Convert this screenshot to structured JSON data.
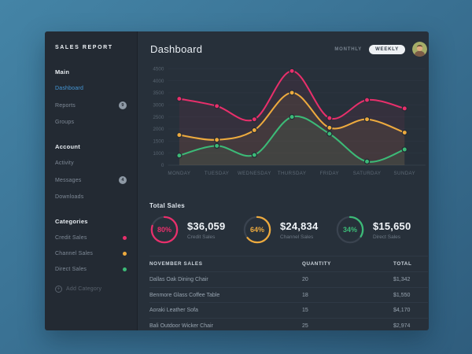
{
  "app": {
    "brand": "SALES REPORT"
  },
  "sidebar": {
    "sections": [
      {
        "title": "Main",
        "items": [
          {
            "label": "Dashboard",
            "active": true
          },
          {
            "label": "Reports",
            "badge": "9"
          },
          {
            "label": "Groups"
          }
        ]
      },
      {
        "title": "Account",
        "items": [
          {
            "label": "Activity"
          },
          {
            "label": "Messages",
            "badge": "4"
          },
          {
            "label": "Downloads"
          }
        ]
      },
      {
        "title": "Categories",
        "items": [
          {
            "label": "Credit Sales",
            "dot": "#e82f6b"
          },
          {
            "label": "Channel Sales",
            "dot": "#edaa3e"
          },
          {
            "label": "Direct Sales",
            "dot": "#3cba77"
          }
        ]
      }
    ],
    "add_category": "Add Category"
  },
  "header": {
    "title": "Dashboard",
    "monthly_label": "MONTHLY",
    "weekly_label": "WEEKLY",
    "selected_range": "WEEKLY"
  },
  "chart_data": {
    "type": "line",
    "x": [
      "MONDAY",
      "TUESDAY",
      "WEDNESDAY",
      "THURSDAY",
      "FRIDAY",
      "SATURDAY",
      "SUNDAY"
    ],
    "y_ticks": [
      4500,
      4000,
      3500,
      3000,
      2500,
      2000,
      1500,
      1000,
      0
    ],
    "ylim": [
      0,
      4500
    ],
    "grid": true,
    "legend_position": "none",
    "series": [
      {
        "name": "Credit Sales",
        "color": "#e82f6b",
        "values": [
          3250,
          2950,
          2400,
          4400,
          2450,
          3200,
          2850
        ]
      },
      {
        "name": "Channel Sales",
        "color": "#edaa3e",
        "values": [
          1750,
          1550,
          1950,
          3500,
          2050,
          2400,
          1850
        ]
      },
      {
        "name": "Direct Sales",
        "color": "#3cba77",
        "values": [
          800,
          1300,
          850,
          2500,
          1800,
          300,
          1150
        ]
      }
    ]
  },
  "totals": {
    "heading": "Total Sales",
    "stats": [
      {
        "percent": 80,
        "percent_label": "80%",
        "value": "$36,059",
        "label": "Credit Sales",
        "color": "#e82f6b"
      },
      {
        "percent": 64,
        "percent_label": "64%",
        "value": "$24,834",
        "label": "Channel Sales",
        "color": "#edaa3e"
      },
      {
        "percent": 34,
        "percent_label": "34%",
        "value": "$15,650",
        "label": "Direct Sales",
        "color": "#3cba77"
      }
    ]
  },
  "table": {
    "headers": [
      "NOVEMBER SALES",
      "QUANTITY",
      "TOTAL"
    ],
    "rows": [
      {
        "name": "Dallas Oak Dining Chair",
        "quantity": "20",
        "total": "$1,342"
      },
      {
        "name": "Benmore Glass Coffee Table",
        "quantity": "18",
        "total": "$1,550"
      },
      {
        "name": "Aoraki Leather Sofa",
        "quantity": "15",
        "total": "$4,170"
      },
      {
        "name": "Bali Outdoor Wicker Chair",
        "quantity": "25",
        "total": "$2,974"
      }
    ]
  },
  "colors": {
    "accent_pink": "#e82f6b",
    "accent_orange": "#edaa3e",
    "accent_green": "#3cba77",
    "accent_blue": "#4498d8",
    "card_bg": "#27303a",
    "sidebar_bg": "#232a33"
  }
}
